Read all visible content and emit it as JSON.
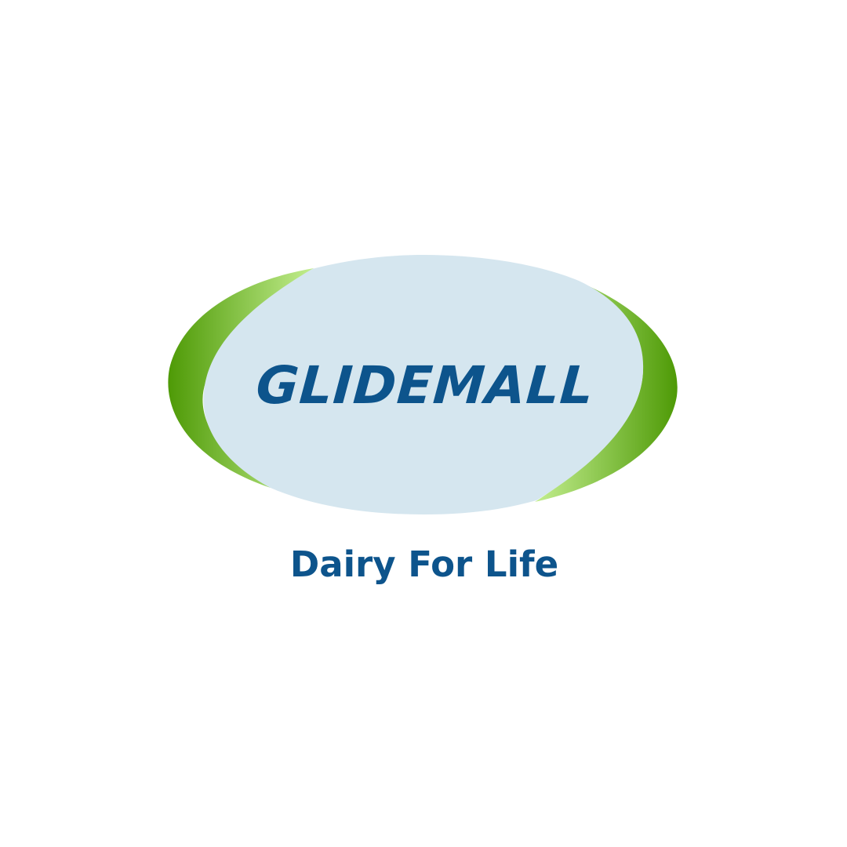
{
  "logo": {
    "brand_name": "GLIDEMALL",
    "tagline": "Dairy For Life",
    "emblem_icon": "oval-swoosh-emblem"
  },
  "colors": {
    "background": "#ffffff",
    "oval_fill": "#d5e6ef",
    "swoosh_dark": "#4e9a06",
    "swoosh_light": "#c3ee8f",
    "text_primary": "#0d548c"
  }
}
